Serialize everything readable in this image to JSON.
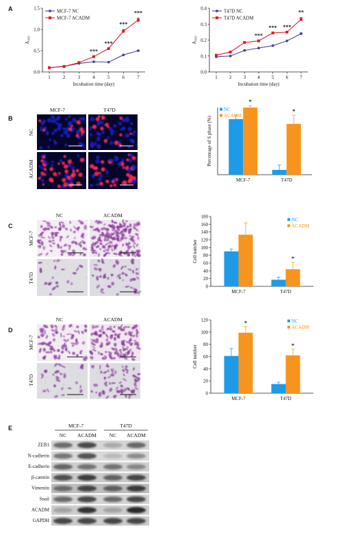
{
  "panel_labels": {
    "a": "A",
    "b": "B",
    "c": "C",
    "d": "D",
    "e": "E"
  },
  "colors": {
    "nc_line": "#4a3f9a",
    "acadm_line": "#e01b24",
    "nc_bar": "#1e9be6",
    "acadm_bar": "#f7941d",
    "stain_purple": "#8b3c9c",
    "fluor_blue": "#1a20b8",
    "fluor_red": "#ff2a55"
  },
  "figure_b": {
    "cols": [
      "MCF-7",
      "T47D"
    ],
    "rows": [
      "NC",
      "ACADM"
    ]
  },
  "figure_c": {
    "cols": [
      "NC",
      "ACADM"
    ],
    "rows": [
      "MCF-7",
      "T47D"
    ]
  },
  "figure_d": {
    "cols": [
      "NC",
      "ACADM"
    ],
    "rows": [
      "MCF-7",
      "T47D"
    ]
  },
  "western": {
    "groups": [
      "MCF-7",
      "T47D"
    ],
    "lanes": [
      "NC",
      "ACADM",
      "NC",
      "ACADM"
    ],
    "proteins": [
      "ZEB1",
      "N-cadherin",
      "E-cadherin",
      "β-catenin",
      "Vimentin",
      "Snail",
      "ACADM",
      "GAPDH"
    ]
  },
  "chart_data": [
    {
      "id": "a-left",
      "type": "line",
      "categories": [
        1,
        2,
        3,
        4,
        5,
        6,
        7
      ],
      "series": [
        {
          "name": "MCF-7 NC",
          "values": [
            0.1,
            0.13,
            0.2,
            0.24,
            0.23,
            0.4,
            0.5
          ]
        },
        {
          "name": "MCF-7 ACADM",
          "values": [
            0.1,
            0.13,
            0.22,
            0.36,
            0.55,
            0.96,
            1.22
          ]
        }
      ],
      "errors": [
        [
          0,
          0,
          0,
          0,
          0,
          0,
          0.01
        ],
        [
          0,
          0,
          0,
          0,
          0,
          0.04,
          0.05
        ]
      ],
      "annotations": [
        "",
        "",
        "",
        "***",
        "***",
        "***",
        "***"
      ],
      "ylabel": "A₄₅₀",
      "xlabel": "Incubation time (day)",
      "ylim": [
        0.0,
        1.5
      ],
      "yticks": [
        "0.0",
        "0.5",
        "1.0",
        "1.5"
      ],
      "legend": "top-left"
    },
    {
      "id": "a-right",
      "type": "line",
      "categories": [
        1,
        2,
        3,
        4,
        5,
        6,
        7
      ],
      "series": [
        {
          "name": "T47D NC",
          "values": [
            0.095,
            0.1,
            0.135,
            0.15,
            0.165,
            0.195,
            0.24
          ]
        },
        {
          "name": "T47D ACADM",
          "values": [
            0.105,
            0.125,
            0.185,
            0.195,
            0.245,
            0.25,
            0.33
          ]
        }
      ],
      "errors": [
        [
          0,
          0,
          0,
          0,
          0,
          0,
          0.006
        ],
        [
          0,
          0,
          0,
          0,
          0,
          0,
          0.012
        ]
      ],
      "annotations": [
        "",
        "",
        "",
        "***",
        "***",
        "***",
        "**"
      ],
      "ylabel": "A₄₅₀",
      "xlabel": "Incubation time (day)",
      "ylim": [
        0.0,
        0.4
      ],
      "yticks": [
        "0.0",
        "0.1",
        "0.2",
        "0.3",
        "0.4"
      ],
      "legend": "top-left"
    },
    {
      "id": "b",
      "type": "bar",
      "categories": [
        "MCF-7",
        "T47D"
      ],
      "series": [
        {
          "name": "NC",
          "values": [
            0.58,
            0.05
          ]
        },
        {
          "name": "ACADM",
          "values": [
            0.7,
            0.53
          ]
        }
      ],
      "errors": [
        [
          0.04,
          0.05
        ],
        [
          0.02,
          0.09
        ]
      ],
      "annotations": [
        "*",
        "*"
      ],
      "ylabel": "Percentage of S phase (%)",
      "ylim": [
        0,
        0.7
      ],
      "legend": "top-left"
    },
    {
      "id": "c",
      "type": "bar",
      "categories": [
        "MCF-7",
        "T47D"
      ],
      "series": [
        {
          "name": "NC",
          "values": [
            90,
            17
          ]
        },
        {
          "name": "ACADM",
          "values": [
            133,
            44
          ]
        }
      ],
      "errors": [
        [
          6,
          7
        ],
        [
          30,
          18
        ]
      ],
      "annotations": [
        "",
        "*"
      ],
      "ylabel": "Cell number",
      "ylim": [
        0,
        180
      ],
      "yticks": [
        "0",
        "20",
        "40",
        "60",
        "80",
        "100",
        "120",
        "140",
        "160",
        "180"
      ],
      "legend": "top-right"
    },
    {
      "id": "d",
      "type": "bar",
      "categories": [
        "MCF-7",
        "T47D"
      ],
      "series": [
        {
          "name": "NC",
          "values": [
            61,
            15
          ]
        },
        {
          "name": "ACADM",
          "values": [
            99,
            62
          ]
        }
      ],
      "errors": [
        [
          12,
          3
        ],
        [
          10,
          10
        ]
      ],
      "annotations": [
        "*",
        "*"
      ],
      "ylabel": "Cell number",
      "ylim": [
        0,
        120
      ],
      "yticks": [
        "0",
        "20",
        "40",
        "60",
        "80",
        "100",
        "120"
      ],
      "legend": "top-right"
    }
  ]
}
